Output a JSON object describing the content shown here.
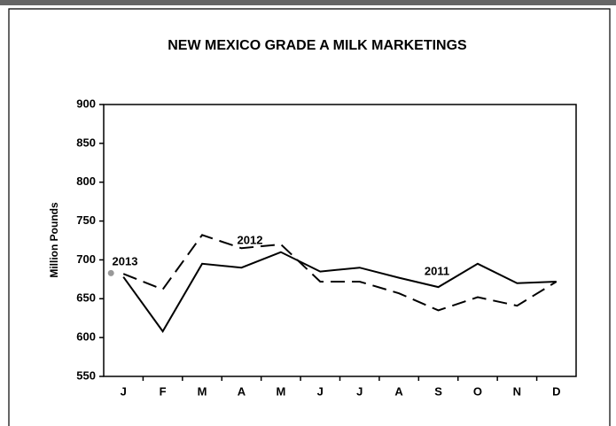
{
  "chart_data": {
    "type": "line",
    "title": "NEW MEXICO GRADE A MILK MARKETINGS",
    "y_label": "Million Pounds",
    "categories": [
      "J",
      "F",
      "M",
      "A",
      "M",
      "J",
      "J",
      "A",
      "S",
      "O",
      "N",
      "D"
    ],
    "series": [
      {
        "name": "2011",
        "color": "#000000",
        "line_style": "solid",
        "values": [
          678,
          608,
          695,
          690,
          710,
          685,
          690,
          677,
          665,
          695,
          670,
          672
        ]
      },
      {
        "name": "2012",
        "color": "#000000",
        "line_style": "dashed",
        "values": [
          682,
          662,
          732,
          715,
          720,
          672,
          672,
          657,
          635,
          652,
          641,
          672
        ]
      },
      {
        "name": "2013",
        "color": "#999999",
        "line_style": "solid",
        "values": [
          683,
          null,
          null,
          null,
          null,
          null,
          null,
          null,
          null,
          null,
          null,
          null
        ]
      }
    ],
    "ylim": [
      550,
      900
    ],
    "yticks": [
      550,
      600,
      650,
      700,
      750,
      800,
      850,
      900
    ],
    "grid": false
  }
}
